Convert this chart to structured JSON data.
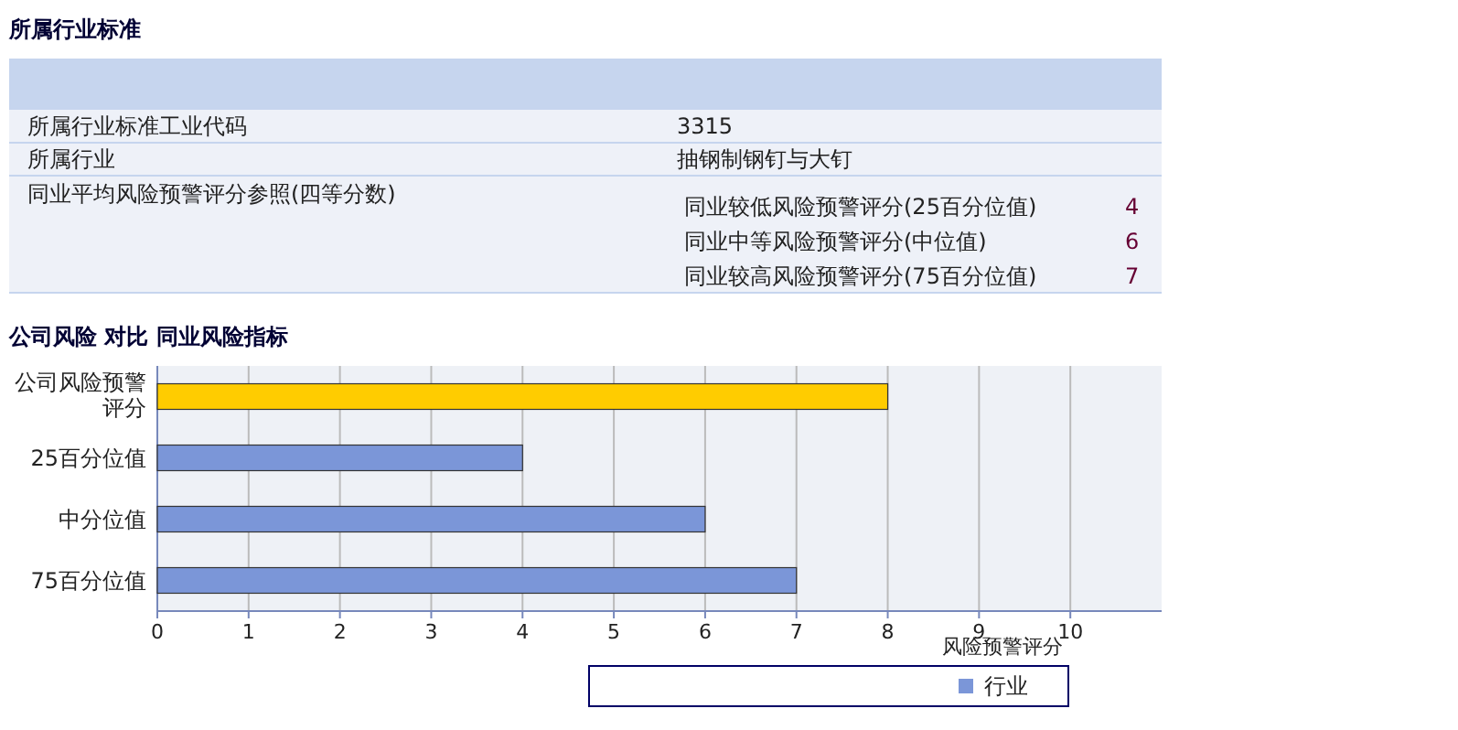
{
  "chart_data": {
    "type": "bar",
    "orientation": "horizontal",
    "title": "公司风险  对比  同业风险指标",
    "xlabel": "风险预警评分",
    "categories": [
      "公司风险预警评分",
      "25百分位值",
      "中分位值",
      "75百分位值"
    ],
    "series": [
      {
        "color": "#ffcc00",
        "values": [
          8,
          null,
          null,
          null
        ]
      },
      {
        "name": "行业",
        "color": "#7b96d8",
        "values": [
          null,
          4,
          6,
          7
        ]
      }
    ],
    "xlim": [
      0,
      11
    ],
    "xticks": [
      0,
      1,
      2,
      3,
      4,
      5,
      6,
      7,
      8,
      9,
      10
    ],
    "grid": "x",
    "legend": "bottom",
    "annotations": [
      "所属行业标准",
      "所属行业标准工业代码",
      "3315",
      "所属行业",
      "抽钢制钢钉与大钉",
      "同业平均风险预警评分参照(四等分数)",
      "同业较低风险预警评分(25百分位值)",
      "4",
      "同业中等风险预警评分(中位值)",
      "6",
      "同业较高风险预警评分(75百分位值)",
      "7"
    ]
  }
}
